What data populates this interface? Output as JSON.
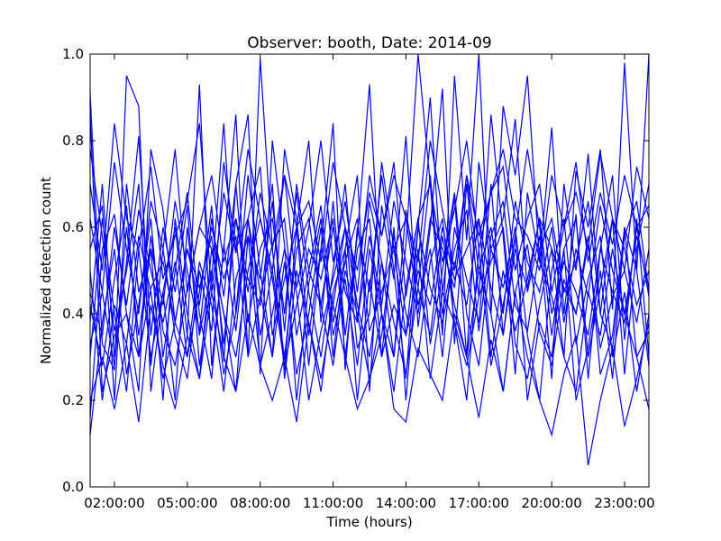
{
  "chart_data": {
    "type": "line",
    "title": "Observer: booth, Date: 2014-09",
    "xlabel": "Time (hours)",
    "ylabel": "Normalized detection count",
    "xlim": [
      1.0,
      24.0
    ],
    "ylim": [
      0.0,
      1.0
    ],
    "x_ticks": [
      {
        "value": 2,
        "label": "02:00:00"
      },
      {
        "value": 5,
        "label": "05:00:00"
      },
      {
        "value": 8,
        "label": "08:00:00"
      },
      {
        "value": 11,
        "label": "11:00:00"
      },
      {
        "value": 14,
        "label": "14:00:00"
      },
      {
        "value": 17,
        "label": "17:00:00"
      },
      {
        "value": 20,
        "label": "20:00:00"
      },
      {
        "value": 23,
        "label": "23:00:00"
      }
    ],
    "y_ticks": [
      {
        "value": 0.0,
        "label": "0.0"
      },
      {
        "value": 0.2,
        "label": "0.2"
      },
      {
        "value": 0.4,
        "label": "0.4"
      },
      {
        "value": 0.6,
        "label": "0.6"
      },
      {
        "value": 0.8,
        "label": "0.8"
      },
      {
        "value": 1.0,
        "label": "1.0"
      }
    ],
    "grid": false,
    "legend": "none",
    "line_color": "#0000ff",
    "x": [
      1,
      1.5,
      2,
      2.5,
      3,
      3.5,
      4,
      4.5,
      5,
      5.5,
      6,
      6.5,
      7,
      7.5,
      8,
      8.5,
      9,
      9.5,
      10,
      10.5,
      11,
      11.5,
      12,
      12.5,
      13,
      13.5,
      14,
      14.5,
      15,
      15.5,
      16,
      16.5,
      17,
      17.5,
      18,
      18.5,
      19,
      19.5,
      20,
      20.5,
      21,
      21.5,
      22,
      22.5,
      23,
      23.5,
      24
    ],
    "series": [
      {
        "values": [
          0.91,
          0.33,
          0.27,
          0.95,
          0.88,
          0.22,
          0.45,
          0.6,
          0.35,
          0.93,
          0.28,
          0.55,
          0.86,
          0.3,
          0.99,
          0.55,
          0.27,
          0.6,
          0.8,
          0.38,
          0.66,
          0.35,
          0.58,
          0.93,
          0.4,
          0.3,
          0.56,
          1.0,
          0.7,
          0.35,
          0.95,
          0.57,
          1.0,
          0.4,
          0.88,
          0.72,
          0.95,
          0.52,
          0.44,
          0.3,
          0.73,
          0.6,
          0.78,
          0.41,
          0.98,
          0.5,
          1.0
        ]
      },
      {
        "values": [
          0.16,
          0.55,
          0.63,
          0.4,
          0.22,
          0.78,
          0.64,
          0.38,
          0.55,
          0.42,
          0.65,
          0.29,
          0.7,
          0.86,
          0.26,
          0.8,
          0.56,
          0.2,
          0.47,
          0.62,
          0.3,
          0.55,
          0.72,
          0.22,
          0.65,
          0.48,
          0.81,
          0.37,
          0.6,
          0.92,
          0.33,
          0.7,
          0.44,
          0.86,
          0.58,
          0.26,
          0.68,
          0.52,
          0.83,
          0.4,
          0.63,
          0.25,
          0.55,
          0.72,
          0.34,
          0.62,
          0.3
        ]
      },
      {
        "values": [
          0.38,
          0.7,
          0.3,
          0.52,
          0.81,
          0.35,
          0.6,
          0.45,
          0.65,
          0.28,
          0.48,
          0.84,
          0.4,
          0.72,
          0.5,
          0.3,
          0.78,
          0.62,
          0.35,
          0.55,
          0.84,
          0.27,
          0.6,
          0.45,
          0.72,
          0.5,
          0.25,
          0.6,
          0.9,
          0.45,
          0.67,
          0.3,
          0.75,
          0.55,
          0.62,
          0.85,
          0.45,
          0.58,
          0.25,
          0.7,
          0.5,
          0.77,
          0.4,
          0.62,
          0.26,
          0.55,
          0.7
        ]
      },
      {
        "values": [
          0.33,
          0.45,
          0.28,
          0.6,
          0.35,
          0.55,
          0.42,
          0.66,
          0.5,
          0.36,
          0.62,
          0.44,
          0.7,
          0.38,
          0.55,
          0.62,
          0.4,
          0.68,
          0.45,
          0.3,
          0.5,
          0.7,
          0.38,
          0.58,
          0.42,
          0.66,
          0.52,
          0.4,
          0.62,
          0.55,
          0.46,
          0.72,
          0.5,
          0.6,
          0.4,
          0.66,
          0.52,
          0.45,
          0.6,
          0.38,
          0.55,
          0.44,
          0.65,
          0.5,
          0.4,
          0.58,
          0.46
        ]
      },
      {
        "values": [
          0.12,
          0.38,
          0.55,
          0.26,
          0.42,
          0.62,
          0.3,
          0.5,
          0.68,
          0.4,
          0.25,
          0.56,
          0.36,
          0.62,
          0.45,
          0.3,
          0.52,
          0.26,
          0.4,
          0.6,
          0.35,
          0.48,
          0.28,
          0.55,
          0.4,
          0.22,
          0.46,
          0.62,
          0.33,
          0.5,
          0.68,
          0.4,
          0.28,
          0.55,
          0.46,
          0.6,
          0.35,
          0.2,
          0.5,
          0.62,
          0.33,
          0.48,
          0.58,
          0.3,
          0.45,
          0.22,
          0.4
        ]
      },
      {
        "values": [
          0.5,
          0.2,
          0.42,
          0.33,
          0.58,
          0.45,
          0.25,
          0.38,
          0.3,
          0.52,
          0.42,
          0.22,
          0.48,
          0.58,
          0.28,
          0.4,
          0.55,
          0.45,
          0.2,
          0.36,
          0.48,
          0.6,
          0.42,
          0.3,
          0.52,
          0.38,
          0.26,
          0.46,
          0.35,
          0.58,
          0.42,
          0.3,
          0.5,
          0.4,
          0.22,
          0.45,
          0.56,
          0.36,
          0.28,
          0.48,
          0.4,
          0.56,
          0.32,
          0.44,
          0.5,
          0.38,
          0.55
        ]
      },
      {
        "values": [
          0.62,
          0.45,
          0.75,
          0.55,
          0.4,
          0.66,
          0.55,
          0.78,
          0.45,
          0.6,
          0.72,
          0.52,
          0.62,
          0.45,
          0.68,
          0.55,
          0.72,
          0.46,
          0.6,
          0.8,
          0.52,
          0.66,
          0.45,
          0.72,
          0.58,
          0.75,
          0.44,
          0.62,
          0.7,
          0.52,
          0.64,
          0.8,
          0.55,
          0.68,
          0.74,
          0.5,
          0.62,
          0.7,
          0.45,
          0.6,
          0.75,
          0.52,
          0.68,
          0.56,
          0.72,
          0.6,
          0.65
        ]
      },
      {
        "values": [
          0.3,
          0.62,
          0.4,
          0.22,
          0.55,
          0.3,
          0.45,
          0.2,
          0.6,
          0.35,
          0.5,
          0.26,
          0.4,
          0.62,
          0.35,
          0.5,
          0.3,
          0.55,
          0.62,
          0.42,
          0.28,
          0.5,
          0.4,
          0.25,
          0.35,
          0.58,
          0.4,
          0.3,
          0.52,
          0.62,
          0.38,
          0.28,
          0.44,
          0.52,
          0.6,
          0.33,
          0.25,
          0.42,
          0.55,
          0.3,
          0.22,
          0.45,
          0.35,
          0.55,
          0.4,
          0.3,
          0.36
        ]
      },
      {
        "values": [
          0.78,
          0.58,
          0.36,
          0.5,
          0.7,
          0.28,
          0.55,
          0.35,
          0.25,
          0.5,
          0.36,
          0.75,
          0.55,
          0.62,
          0.74,
          0.35,
          0.48,
          0.6,
          0.28,
          0.55,
          0.42,
          0.6,
          0.32,
          0.4,
          0.75,
          0.55,
          0.62,
          0.42,
          0.55,
          0.3,
          0.6,
          0.48,
          0.38,
          0.7,
          0.35,
          0.58,
          0.78,
          0.6,
          0.35,
          0.55,
          0.62,
          0.3,
          0.46,
          0.62,
          0.55,
          0.42,
          0.5
        ]
      },
      {
        "values": [
          0.42,
          0.28,
          0.48,
          0.65,
          0.3,
          0.58,
          0.36,
          0.28,
          0.46,
          0.6,
          0.55,
          0.4,
          0.3,
          0.5,
          0.62,
          0.48,
          0.28,
          0.42,
          0.55,
          0.48,
          0.62,
          0.3,
          0.55,
          0.62,
          0.3,
          0.42,
          0.35,
          0.5,
          0.42,
          0.6,
          0.48,
          0.55,
          0.62,
          0.3,
          0.5,
          0.36,
          0.48,
          0.62,
          0.55,
          0.46,
          0.4,
          0.58,
          0.26,
          0.35,
          0.6,
          0.5,
          0.28
        ]
      },
      {
        "values": [
          0.86,
          0.22,
          0.35,
          0.4,
          0.3,
          0.46,
          0.52,
          0.38,
          0.55,
          0.46,
          0.58,
          0.33,
          0.62,
          0.48,
          0.42,
          0.66,
          0.36,
          0.7,
          0.5,
          0.42,
          0.6,
          0.45,
          0.38,
          0.66,
          0.52,
          0.3,
          0.64,
          0.46,
          0.72,
          0.4,
          0.55,
          0.64,
          0.36,
          0.58,
          0.66,
          0.42,
          0.36,
          0.55,
          0.62,
          0.45,
          0.52,
          0.66,
          0.4,
          0.32,
          0.58,
          0.66,
          0.45
        ]
      },
      {
        "values": [
          0.55,
          0.65,
          0.2,
          0.7,
          0.45,
          0.55,
          0.2,
          0.62,
          0.4,
          0.25,
          0.55,
          0.4,
          0.22,
          0.58,
          0.48,
          0.7,
          0.25,
          0.5,
          0.38,
          0.22,
          0.45,
          0.55,
          0.2,
          0.48,
          0.3,
          0.6,
          0.2,
          0.55,
          0.25,
          0.45,
          0.38,
          0.2,
          0.55,
          0.28,
          0.42,
          0.58,
          0.2,
          0.38,
          0.3,
          0.55,
          0.2,
          0.32,
          0.5,
          0.25,
          0.6,
          0.3,
          0.18
        ]
      },
      {
        "values": [
          0.2,
          0.3,
          0.18,
          0.33,
          0.15,
          0.42,
          0.28,
          0.18,
          0.35,
          0.25,
          0.45,
          0.3,
          0.22,
          0.4,
          0.28,
          0.2,
          0.3,
          0.15,
          0.38,
          0.25,
          0.42,
          0.3,
          0.18,
          0.25,
          0.4,
          0.18,
          0.15,
          0.32,
          0.26,
          0.2,
          0.4,
          0.3,
          0.16,
          0.34,
          0.22,
          0.45,
          0.3,
          0.2,
          0.12,
          0.26,
          0.35,
          0.05,
          0.2,
          0.32,
          0.14,
          0.25,
          0.38
        ]
      },
      {
        "values": [
          0.7,
          0.5,
          0.84,
          0.62,
          0.55,
          0.74,
          0.48,
          0.58,
          0.66,
          0.84,
          0.45,
          0.68,
          0.54,
          0.78,
          0.62,
          0.5,
          0.72,
          0.6,
          0.66,
          0.52,
          0.75,
          0.6,
          0.5,
          0.68,
          0.58,
          0.72,
          0.62,
          0.52,
          0.8,
          0.64,
          0.5,
          0.72,
          0.58,
          0.68,
          0.78,
          0.62,
          0.58,
          0.5,
          0.72,
          0.6,
          0.68,
          0.55,
          0.77,
          0.62,
          0.5,
          0.74,
          0.62
        ]
      },
      {
        "values": [
          0.45,
          0.35,
          0.6,
          0.42,
          0.64,
          0.5,
          0.38,
          0.52,
          0.3,
          0.45,
          0.6,
          0.48,
          0.58,
          0.3,
          0.44,
          0.56,
          0.62,
          0.35,
          0.5,
          0.65,
          0.38,
          0.52,
          0.62,
          0.36,
          0.45,
          0.55,
          0.35,
          0.6,
          0.46,
          0.38,
          0.52,
          0.42,
          0.62,
          0.46,
          0.35,
          0.55,
          0.46,
          0.62,
          0.4,
          0.52,
          0.45,
          0.35,
          0.55,
          0.45,
          0.38,
          0.6,
          0.44
        ]
      }
    ]
  }
}
